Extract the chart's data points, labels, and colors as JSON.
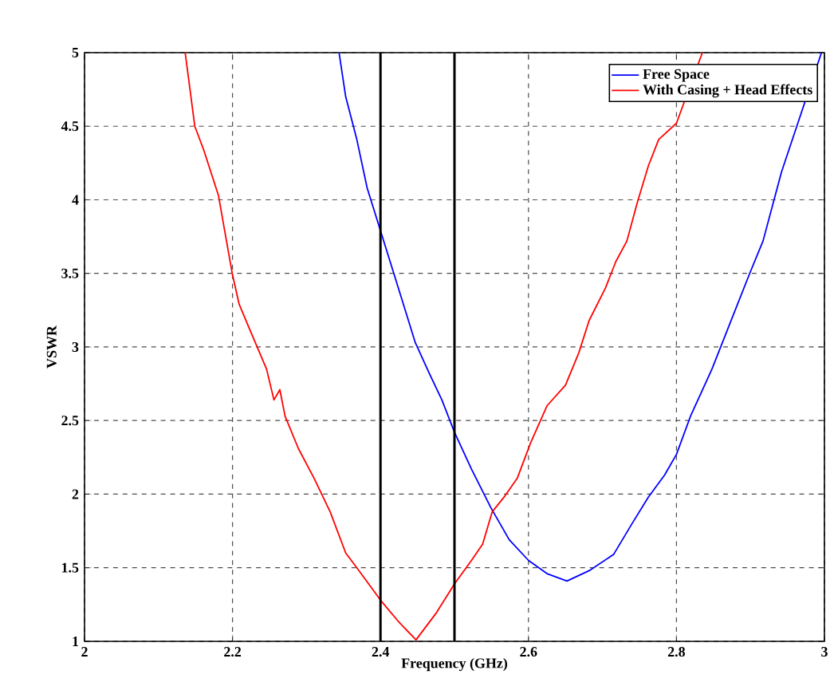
{
  "chart_data": {
    "type": "line",
    "xlabel": "Frequency (GHz)",
    "ylabel": "VSWR",
    "xlim": [
      2,
      3
    ],
    "ylim": [
      1,
      5
    ],
    "xticks": [
      2,
      2.2,
      2.4,
      2.6,
      2.8,
      3
    ],
    "yticks": [
      1,
      1.5,
      2,
      2.5,
      3,
      3.5,
      4,
      4.5,
      5
    ],
    "grid": true,
    "legend": "top right",
    "line_style": "solid",
    "series": [
      {
        "name": "Free Space",
        "color": "#0000ff",
        "x": [
          2.344,
          2.353,
          2.368,
          2.382,
          2.4,
          2.418,
          2.447,
          2.466,
          2.483,
          2.5,
          2.523,
          2.549,
          2.574,
          2.6,
          2.625,
          2.652,
          2.682,
          2.715,
          2.74,
          2.762,
          2.784,
          2.8,
          2.819,
          2.848,
          2.877,
          2.899,
          2.917,
          2.942,
          2.964,
          2.996
        ],
        "values": [
          5,
          4.7,
          4.41,
          4.08,
          3.79,
          3.5,
          3.03,
          2.82,
          2.64,
          2.42,
          2.17,
          1.91,
          1.69,
          1.55,
          1.46,
          1.41,
          1.48,
          1.59,
          1.8,
          1.98,
          2.13,
          2.27,
          2.53,
          2.85,
          3.22,
          3.5,
          3.72,
          4.19,
          4.52,
          5
        ]
      },
      {
        "name": "With Casing + Head Effects",
        "color": "#ff0000",
        "x": [
          2.136,
          2.141,
          2.149,
          2.161,
          2.181,
          2.188,
          2.2,
          2.209,
          2.224,
          2.246,
          2.256,
          2.264,
          2.271,
          2.289,
          2.31,
          2.332,
          2.353,
          2.368,
          2.4,
          2.425,
          2.448,
          2.475,
          2.5,
          2.523,
          2.538,
          2.551,
          2.567,
          2.585,
          2.603,
          2.625,
          2.65,
          2.668,
          2.682,
          2.704,
          2.718,
          2.733,
          2.747,
          2.762,
          2.776,
          2.8,
          2.819,
          2.835
        ],
        "values": [
          5,
          4.81,
          4.5,
          4.34,
          4.03,
          3.83,
          3.49,
          3.29,
          3.11,
          2.85,
          2.64,
          2.71,
          2.53,
          2.31,
          2.11,
          1.88,
          1.6,
          1.5,
          1.28,
          1.13,
          1.01,
          1.19,
          1.39,
          1.55,
          1.66,
          1.88,
          1.98,
          2.11,
          2.35,
          2.6,
          2.74,
          2.96,
          3.18,
          3.4,
          3.58,
          3.72,
          3.98,
          4.23,
          4.41,
          4.52,
          null,
          5
        ]
      }
    ],
    "ref_lines": [
      {
        "axis": "x",
        "value": 2.4,
        "color": "#000000"
      },
      {
        "axis": "x",
        "value": 2.5,
        "color": "#000000"
      }
    ]
  }
}
